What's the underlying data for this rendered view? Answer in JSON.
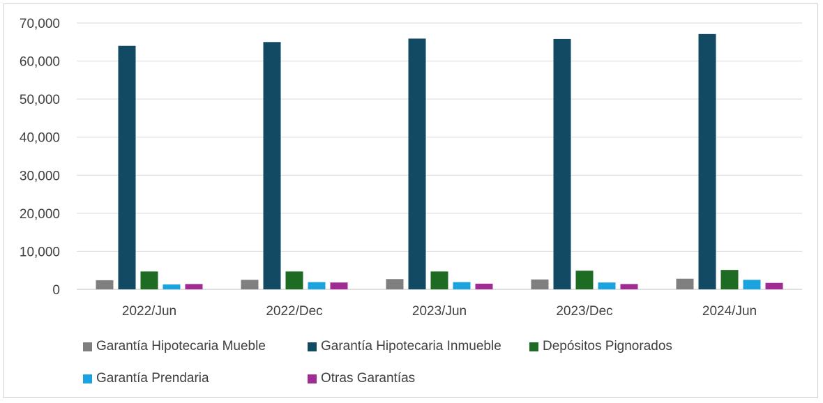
{
  "chart_data": {
    "type": "bar",
    "categories": [
      "2022/Jun",
      "2022/Dec",
      "2023/Jun",
      "2023/Dec",
      "2024/Jun"
    ],
    "series": [
      {
        "name": "Garantía Hipotecaria Mueble",
        "color": "#7f7f7f",
        "values": [
          2400,
          2500,
          2700,
          2600,
          2800
        ]
      },
      {
        "name": "Garantía Hipotecaria Inmueble",
        "color": "#124a63",
        "values": [
          64000,
          65000,
          65900,
          65800,
          67100
        ]
      },
      {
        "name": "Depósitos Pignorados",
        "color": "#1e6b24",
        "values": [
          4700,
          4700,
          4700,
          4900,
          5100
        ]
      },
      {
        "name": "Garantía Prendaria",
        "color": "#1aa3de",
        "values": [
          1300,
          1900,
          1900,
          1800,
          2500
        ]
      },
      {
        "name": "Otras Garantías",
        "color": "#a02b93",
        "values": [
          1400,
          1800,
          1500,
          1400,
          1700
        ]
      }
    ],
    "yticks": [
      "0",
      "10,000",
      "20,000",
      "30,000",
      "40,000",
      "50,000",
      "60,000",
      "70,000"
    ],
    "ylim": [
      0,
      70000
    ],
    "grid": true,
    "legend_position": "bottom",
    "title": "",
    "xlabel": "",
    "ylabel": ""
  }
}
